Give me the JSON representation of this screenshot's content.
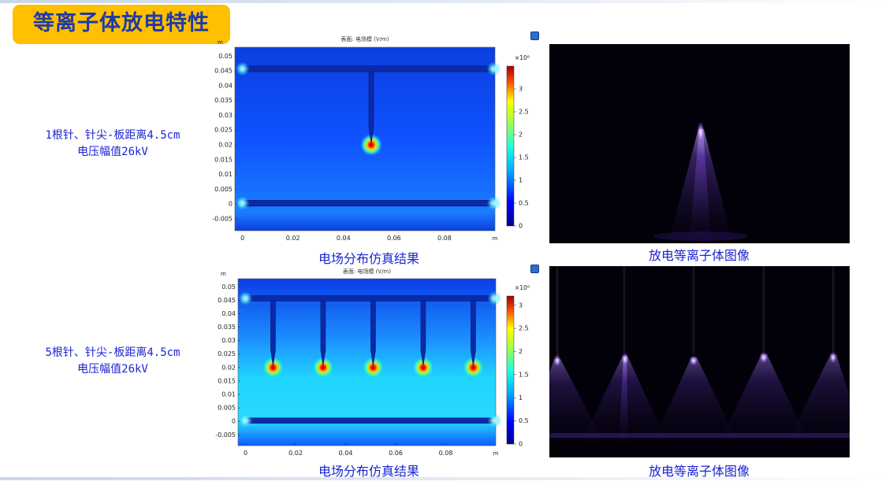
{
  "title": "等离子体放电特性",
  "rows": [
    {
      "label_line1": "1根针、针尖-板距离4.5cm",
      "label_line2": "电压幅值26kV",
      "sim_caption": "电场分布仿真结果",
      "photo_caption": "放电等离子体图像",
      "needle_count": 1
    },
    {
      "label_line1": "5根针、针尖-板距离4.5cm",
      "label_line2": "电压幅值26kV",
      "sim_caption": "电场分布仿真结果",
      "photo_caption": "放电等离子体图像",
      "needle_count": 5
    }
  ],
  "chart_data": [
    {
      "type": "heatmap",
      "title": "表面: 电场模 (V/m)",
      "xunit": "m",
      "yunit": "m",
      "xticks": [
        "0",
        "0.02",
        "0.04",
        "0.06",
        "0.08"
      ],
      "yticks": [
        "0.05",
        "0.045",
        "0.04",
        "0.035",
        "0.03",
        "0.025",
        "0.02",
        "0.015",
        "0.01",
        "0.005",
        "0",
        "-0.005"
      ],
      "xlim": [
        -0.003,
        0.1
      ],
      "ylim": [
        -0.009,
        0.053
      ],
      "colorbar_exponent": "×10⁶",
      "colorbar_ticks": [
        "3",
        "2.5",
        "2",
        "1.5",
        "1",
        "0.5",
        "0"
      ],
      "colorbar_range": [
        0,
        3.5
      ],
      "needle_x": [
        0.051
      ],
      "needle_tip_y": 0.02
    },
    {
      "type": "heatmap",
      "title": "表面: 电场模 (V/m)",
      "xunit": "m",
      "yunit": "m",
      "xticks": [
        "0",
        "0.02",
        "0.04",
        "0.06",
        "0.08"
      ],
      "yticks": [
        "0.05",
        "0.045",
        "0.04",
        "0.035",
        "0.03",
        "0.025",
        "0.02",
        "0.015",
        "0.01",
        "0.005",
        "0",
        "-0.005"
      ],
      "xlim": [
        -0.003,
        0.1
      ],
      "ylim": [
        -0.009,
        0.053
      ],
      "colorbar_exponent": "×10⁶",
      "colorbar_ticks": [
        "3",
        "2.5",
        "2",
        "1.5",
        "1",
        "0.5",
        "0"
      ],
      "colorbar_range": [
        0,
        3.2
      ],
      "needle_x": [
        0.011,
        0.031,
        0.051,
        0.071,
        0.091
      ],
      "needle_tip_y": 0.02
    }
  ]
}
